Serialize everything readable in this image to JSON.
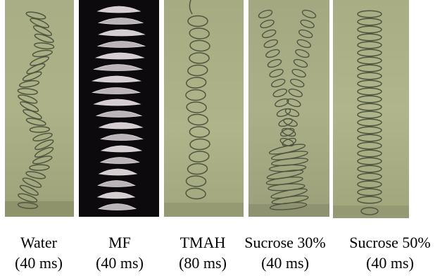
{
  "panels": [
    {
      "label": "Water",
      "time": "(40 ms)"
    },
    {
      "label": "MF",
      "time": "(40 ms)"
    },
    {
      "label": "TMAH",
      "time": "(80 ms)"
    },
    {
      "label": "Sucrose 30%",
      "time": "(40 ms)"
    },
    {
      "label": "Sucrose 50%",
      "time": "(40 ms)"
    }
  ],
  "colors": {
    "liquid_background": "#a8ad82",
    "mf_background": "#0c0a0c",
    "coil_line": "#5c6348",
    "mf_coil": "#d9d3d6"
  }
}
